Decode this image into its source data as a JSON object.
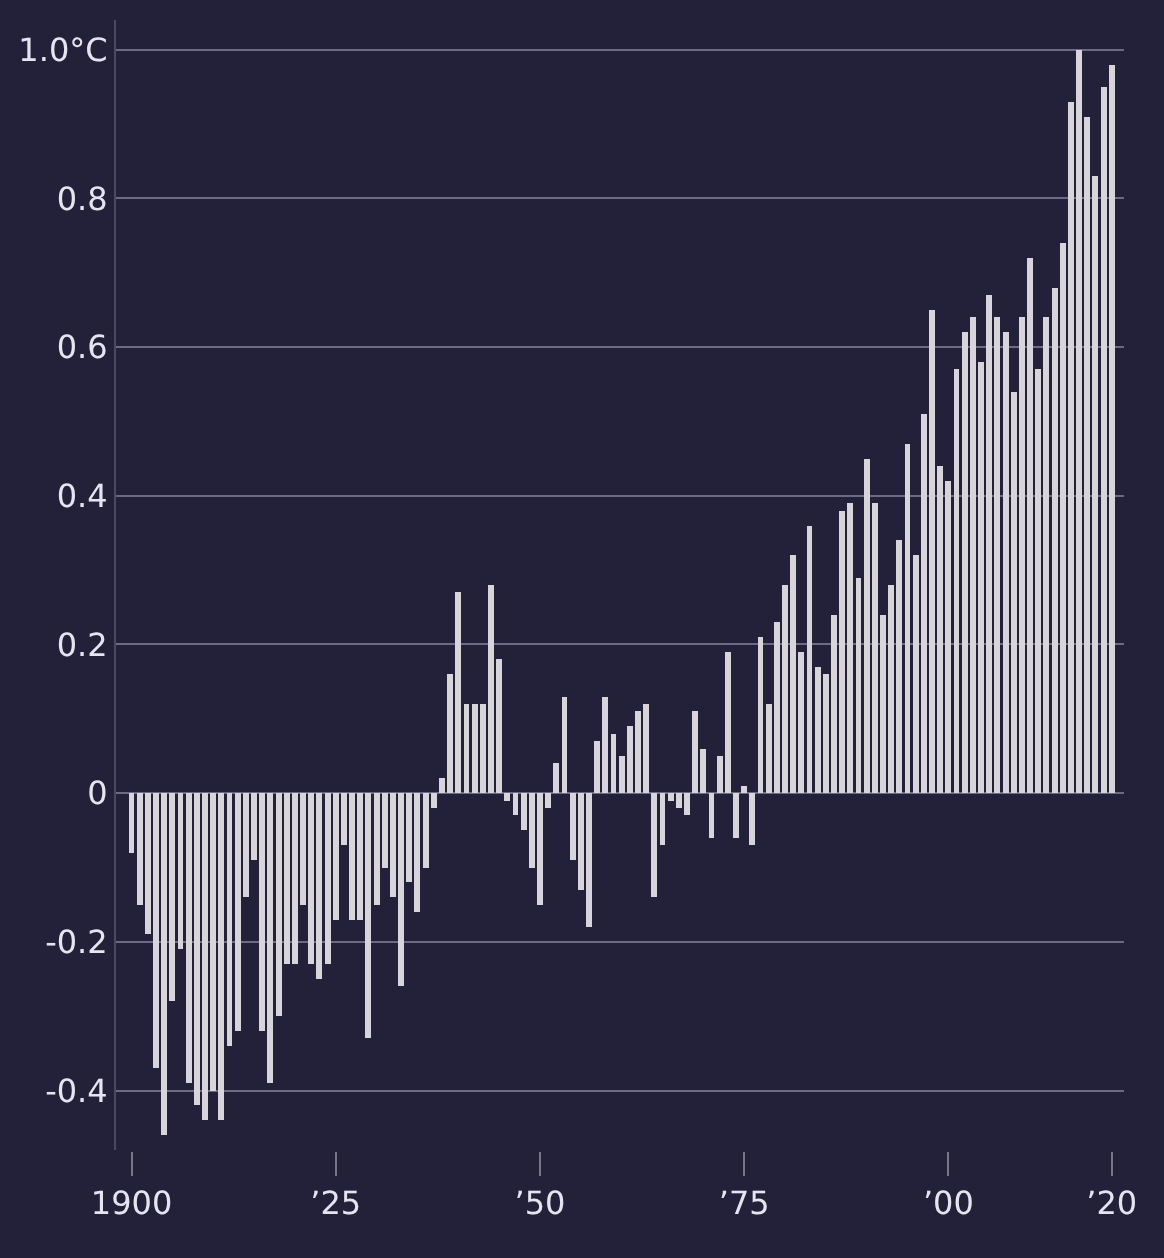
{
  "chart_data": {
    "type": "bar",
    "color": "#d8d5da",
    "x": [
      1900,
      1901,
      1902,
      1903,
      1904,
      1905,
      1906,
      1907,
      1908,
      1909,
      1910,
      1911,
      1912,
      1913,
      1914,
      1915,
      1916,
      1917,
      1918,
      1919,
      1920,
      1921,
      1922,
      1923,
      1924,
      1925,
      1926,
      1927,
      1928,
      1929,
      1930,
      1931,
      1932,
      1933,
      1934,
      1935,
      1936,
      1937,
      1938,
      1939,
      1940,
      1941,
      1942,
      1943,
      1944,
      1945,
      1946,
      1947,
      1948,
      1949,
      1950,
      1951,
      1952,
      1953,
      1954,
      1955,
      1956,
      1957,
      1958,
      1959,
      1960,
      1961,
      1962,
      1963,
      1964,
      1965,
      1966,
      1967,
      1968,
      1969,
      1970,
      1971,
      1972,
      1973,
      1974,
      1975,
      1976,
      1977,
      1978,
      1979,
      1980,
      1981,
      1982,
      1983,
      1984,
      1985,
      1986,
      1987,
      1988,
      1989,
      1990,
      1991,
      1992,
      1993,
      1994,
      1995,
      1996,
      1997,
      1998,
      1999,
      2000,
      2001,
      2002,
      2003,
      2004,
      2005,
      2006,
      2007,
      2008,
      2009,
      2010,
      2011,
      2012,
      2013,
      2014,
      2015,
      2016,
      2017,
      2018,
      2019,
      2020
    ],
    "values": [
      -0.08,
      -0.15,
      -0.19,
      -0.37,
      -0.46,
      -0.28,
      -0.21,
      -0.39,
      -0.42,
      -0.44,
      -0.4,
      -0.44,
      -0.34,
      -0.32,
      -0.14,
      -0.09,
      -0.32,
      -0.39,
      -0.3,
      -0.23,
      -0.23,
      -0.15,
      -0.23,
      -0.25,
      -0.23,
      -0.17,
      -0.07,
      -0.17,
      -0.17,
      -0.33,
      -0.15,
      -0.1,
      -0.14,
      -0.26,
      -0.12,
      -0.16,
      -0.1,
      -0.02,
      0.02,
      0.16,
      0.27,
      0.12,
      0.12,
      0.12,
      0.28,
      0.18,
      -0.01,
      -0.03,
      -0.05,
      -0.1,
      -0.15,
      -0.02,
      0.04,
      0.13,
      -0.09,
      -0.13,
      -0.18,
      0.07,
      0.13,
      0.08,
      0.05,
      0.09,
      0.11,
      0.12,
      -0.14,
      -0.07,
      -0.01,
      -0.02,
      -0.03,
      0.11,
      0.06,
      -0.06,
      0.05,
      0.19,
      -0.06,
      0.01,
      -0.07,
      0.21,
      0.12,
      0.23,
      0.28,
      0.32,
      0.19,
      0.36,
      0.17,
      0.16,
      0.24,
      0.38,
      0.39,
      0.29,
      0.45,
      0.39,
      0.24,
      0.28,
      0.34,
      0.47,
      0.32,
      0.51,
      0.65,
      0.44,
      0.42,
      0.57,
      0.62,
      0.64,
      0.58,
      0.67,
      0.64,
      0.62,
      0.54,
      0.64,
      0.72,
      0.57,
      0.64,
      0.68,
      0.74,
      0.93,
      1.0,
      0.91,
      0.83,
      0.95,
      0.98
    ],
    "xlim": [
      1898.1,
      2021.5
    ],
    "xticks": [
      {
        "value": 1900,
        "label": "1900"
      },
      {
        "value": 1925,
        "label": "’25"
      },
      {
        "value": 1950,
        "label": "’50"
      },
      {
        "value": 1975,
        "label": "’75"
      },
      {
        "value": 2000,
        "label": "’00"
      },
      {
        "value": 2020,
        "label": "’20"
      }
    ],
    "ylim": [
      -0.48,
      1.04
    ],
    "yticks": [
      {
        "value": -0.4,
        "label": "-0.4"
      },
      {
        "value": -0.2,
        "label": "-0.2"
      },
      0,
      {
        "value": 0.2,
        "label": "0.2"
      },
      {
        "value": 0.4,
        "label": "0.4"
      },
      {
        "value": 0.6,
        "label": "0.6"
      },
      {
        "value": 0.8,
        "label": "0.8"
      },
      {
        "value": 1.0,
        "label": "1.0°C"
      }
    ],
    "grid": "y"
  }
}
